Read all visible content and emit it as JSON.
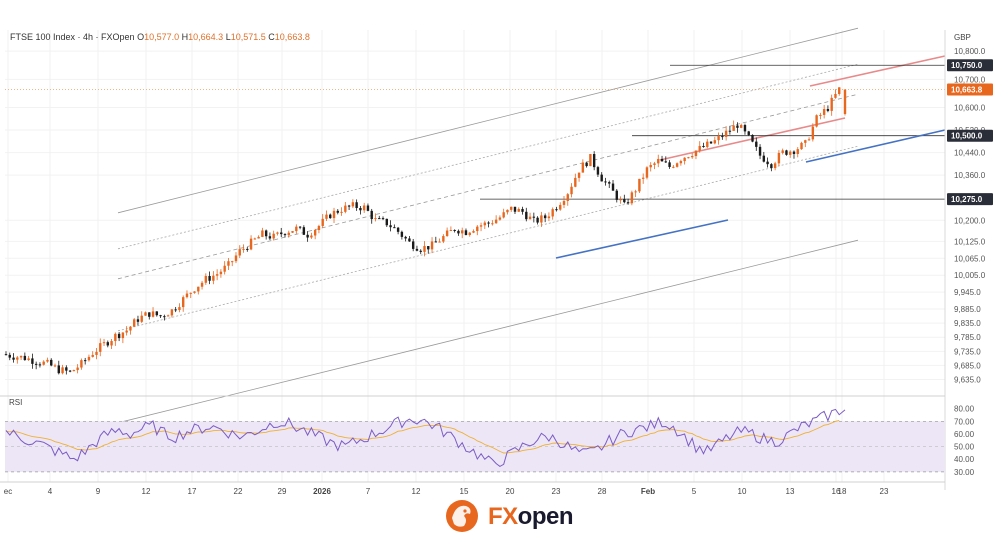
{
  "header": {
    "instrument": "FTSE 100 Index · 4h · FXOpen",
    "open_label": "O",
    "open": "10,577.0",
    "high_label": "H",
    "high": "10,664.3",
    "low_label": "L",
    "low": "10,571.5",
    "close_label": "C",
    "close": "10,663.8",
    "currency": "GBP"
  },
  "rsi_label": "RSI",
  "brand": {
    "fx": "FX",
    "open": "open"
  },
  "chart_data": {
    "type": "candlestick",
    "price_axis": {
      "ticks": [
        "10,800.0",
        "10,700.0",
        "10,600.0",
        "10,520.0",
        "10,440.0",
        "10,360.0",
        "10,200.0",
        "10,125.0",
        "10,065.0",
        "10,005.0",
        "9,945.0",
        "9,885.0",
        "9,835.0",
        "9,785.0",
        "9,735.0",
        "9,685.0",
        "9,635.0"
      ],
      "badges": [
        {
          "label": "10,750.0",
          "kind": "level",
          "color": "#2a2e39"
        },
        {
          "label": "10,663.8",
          "kind": "last-price",
          "color": "#e8671f"
        },
        {
          "label": "10,500.0",
          "kind": "level",
          "color": "#2a2e39"
        },
        {
          "label": "10,275.0",
          "kind": "level",
          "color": "#2a2e39"
        }
      ]
    },
    "rsi_axis": {
      "ticks": [
        "80.00",
        "70.00",
        "60.00",
        "50.00",
        "40.00",
        "30.00"
      ],
      "upper": 70,
      "lower": 30
    },
    "x_ticks": [
      "ec",
      "4",
      "9",
      "12",
      "17",
      "22",
      "29",
      "2026",
      "7",
      "12",
      "15",
      "20",
      "23",
      "28",
      "Feb",
      "5",
      "10",
      "13",
      "16",
      "18",
      "23"
    ],
    "horizontal_levels": [
      10750,
      10500,
      10275
    ],
    "last_price": 10663.8,
    "price_path": [
      9725,
      9718,
      9712,
      9700,
      9690,
      9670,
      9660,
      9690,
      9730,
      9760,
      9790,
      9810,
      9850,
      9870,
      9860,
      9880,
      9920,
      9960,
      9990,
      10010,
      10040,
      10090,
      10120,
      10150,
      10140,
      10160,
      10170,
      10150,
      10180,
      10220,
      10240,
      10250,
      10245,
      10200,
      10190,
      10160,
      10120,
      10100,
      10110,
      10140,
      10170,
      10160,
      10180,
      10190,
      10210,
      10240,
      10230,
      10195,
      10210,
      10250,
      10300,
      10380,
      10420,
      10350,
      10300,
      10250,
      10310,
      10380,
      10410,
      10390,
      10420,
      10440,
      10460,
      10480,
      10510,
      10540,
      10490,
      10430,
      10400,
      10440,
      10450,
      10470,
      10560,
      10600,
      10664
    ],
    "rsi_path": [
      62,
      58,
      55,
      52,
      48,
      44,
      40,
      46,
      54,
      60,
      63,
      60,
      64,
      66,
      60,
      58,
      62,
      64,
      66,
      64,
      60,
      58,
      62,
      66,
      70,
      68,
      64,
      60,
      56,
      52,
      50,
      54,
      58,
      62,
      66,
      70,
      72,
      70,
      66,
      60,
      54,
      48,
      42,
      36,
      40,
      46,
      52,
      56,
      58,
      54,
      48,
      44,
      46,
      52,
      58,
      62,
      64,
      66,
      70,
      66,
      58,
      50,
      46,
      52,
      58,
      62,
      60,
      56,
      54,
      58,
      64,
      68,
      72,
      76,
      79
    ]
  }
}
